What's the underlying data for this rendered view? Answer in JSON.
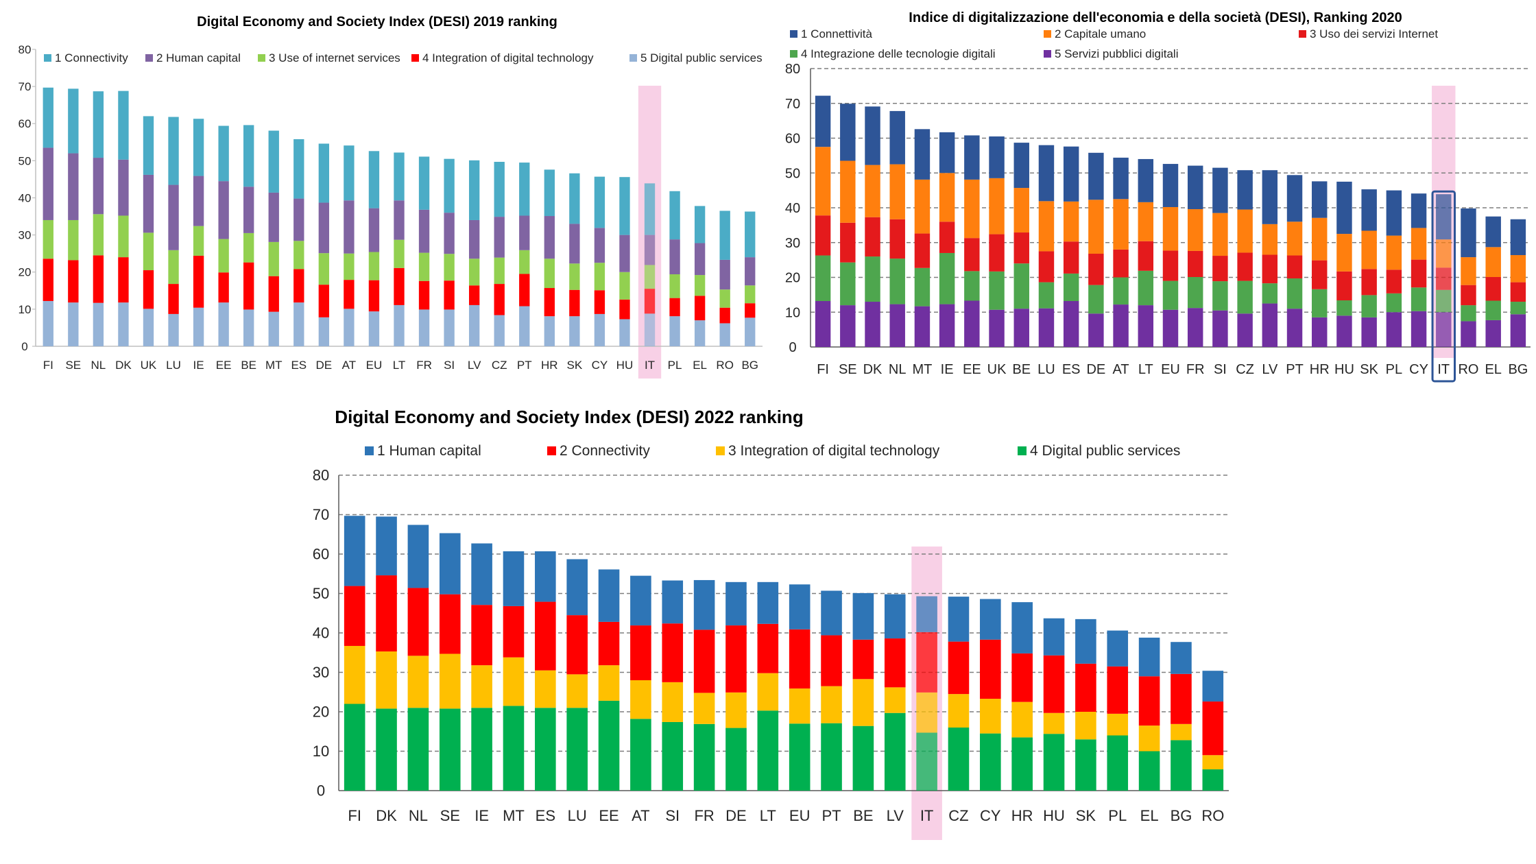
{
  "chart_data": [
    {
      "type": "bar",
      "stacked": true,
      "title": "Digital Economy and Society Index (DESI) 2019 ranking",
      "xlabel": "",
      "ylabel": "",
      "ylim": [
        0,
        80
      ],
      "yticks": [
        "0",
        "10",
        "20",
        "30",
        "40",
        "50",
        "60",
        "70",
        "80"
      ],
      "grid": false,
      "legend": "top",
      "highlight": "IT",
      "categories": [
        "FI",
        "SE",
        "NL",
        "DK",
        "UK",
        "LU",
        "IE",
        "EE",
        "BE",
        "MT",
        "ES",
        "DE",
        "AT",
        "EU",
        "LT",
        "FR",
        "SI",
        "LV",
        "CZ",
        "PT",
        "HR",
        "SK",
        "CY",
        "HU",
        "IT",
        "PL",
        "EL",
        "RO",
        "BG"
      ],
      "series": [
        {
          "name": "5 Digital public services",
          "color": "#95b3d7",
          "values": [
            12.2,
            11.8,
            11.7,
            11.8,
            10.1,
            8.7,
            10.4,
            11.8,
            9.9,
            9.3,
            11.8,
            7.8,
            10.1,
            9.4,
            11.1,
            9.9,
            9.9,
            11.1,
            8.4,
            10.8,
            8.1,
            8.1,
            8.7,
            7.3,
            8.8,
            8.1,
            7.0,
            6.2,
            7.7
          ]
        },
        {
          "name": "4 Integration of digital technology",
          "color": "#ff0000",
          "values": [
            11.4,
            11.4,
            12.8,
            12.2,
            10.4,
            8.1,
            14.0,
            8.1,
            12.7,
            9.6,
            9.0,
            8.8,
            7.8,
            8.4,
            10.0,
            7.7,
            7.8,
            5.3,
            8.4,
            8.7,
            7.6,
            7.1,
            6.4,
            5.3,
            6.7,
            4.9,
            6.6,
            4.2,
            3.9
          ]
        },
        {
          "name": "3 Use of internet services",
          "color": "#92d050",
          "values": [
            10.4,
            10.8,
            11.1,
            11.2,
            10.1,
            9.1,
            8.0,
            9.0,
            7.9,
            9.2,
            7.6,
            8.5,
            7.1,
            7.6,
            7.6,
            7.6,
            7.2,
            7.2,
            7.1,
            6.4,
            7.9,
            7.1,
            7.4,
            7.4,
            6.4,
            6.4,
            5.6,
            4.9,
            4.8
          ]
        },
        {
          "name": "2 Human capital",
          "color": "#8064a2",
          "values": [
            19.5,
            18.0,
            15.2,
            15.1,
            15.6,
            17.6,
            13.5,
            15.6,
            12.5,
            13.3,
            11.4,
            13.6,
            14.3,
            11.8,
            10.6,
            11.6,
            11.1,
            10.4,
            11.0,
            9.3,
            11.5,
            10.7,
            9.4,
            10.0,
            8.1,
            9.4,
            8.6,
            8.0,
            7.6
          ]
        },
        {
          "name": "1 Connectivity",
          "color": "#4bacc6",
          "values": [
            16.2,
            17.4,
            17.9,
            18.5,
            15.8,
            18.3,
            15.4,
            14.9,
            16.6,
            16.7,
            16.0,
            15.9,
            14.8,
            15.4,
            12.9,
            14.3,
            14.5,
            16.1,
            14.8,
            14.3,
            12.5,
            13.6,
            13.8,
            15.6,
            13.9,
            13.0,
            10.0,
            13.2,
            12.3
          ]
        }
      ]
    },
    {
      "type": "bar",
      "stacked": true,
      "title": "Indice di digitalizzazione dell'economia e della società (DESI), Ranking 2020",
      "xlabel": "",
      "ylabel": "",
      "ylim": [
        0,
        80
      ],
      "yticks": [
        "0",
        "10",
        "20",
        "30",
        "40",
        "50",
        "60",
        "70",
        "80"
      ],
      "grid": true,
      "legend": "top",
      "highlight": "IT",
      "categories": [
        "FI",
        "SE",
        "DK",
        "NL",
        "MT",
        "IE",
        "EE",
        "UK",
        "BE",
        "LU",
        "ES",
        "DE",
        "AT",
        "LT",
        "EU",
        "FR",
        "SI",
        "CZ",
        "LV",
        "PT",
        "HR",
        "HU",
        "SK",
        "PL",
        "CY",
        "IT",
        "RO",
        "EL",
        "BG"
      ],
      "series": [
        {
          "name": "5 Servizi pubblici digitali",
          "color": "#7030a0",
          "values": [
            13.2,
            12.0,
            13.0,
            12.3,
            11.7,
            12.3,
            13.3,
            10.7,
            11.0,
            11.1,
            13.2,
            9.6,
            12.2,
            12.0,
            10.7,
            11.2,
            10.5,
            9.6,
            12.5,
            11.0,
            8.5,
            9.0,
            8.5,
            10.0,
            10.3,
            10.0,
            7.4,
            7.7,
            9.4
          ]
        },
        {
          "name": "4 Integrazione delle tecnologie digitali",
          "color": "#4ea64e",
          "values": [
            13.1,
            12.3,
            13.0,
            13.1,
            11.0,
            14.7,
            8.5,
            11.0,
            13.0,
            7.5,
            7.9,
            8.2,
            7.8,
            9.9,
            8.3,
            8.9,
            8.4,
            9.4,
            5.8,
            8.7,
            8.1,
            4.4,
            6.4,
            5.4,
            6.8,
            6.4,
            4.6,
            5.6,
            3.6
          ]
        },
        {
          "name": "3 Uso dei servizi Internet",
          "color": "#e41a1c",
          "values": [
            11.5,
            11.4,
            11.3,
            11.3,
            9.9,
            9.0,
            9.5,
            10.7,
            8.9,
            8.9,
            9.2,
            9.0,
            8.0,
            8.5,
            8.7,
            7.5,
            7.3,
            8.1,
            8.2,
            6.6,
            8.3,
            8.3,
            7.5,
            6.8,
            8.0,
            6.4,
            5.8,
            6.8,
            5.6
          ]
        },
        {
          "name": "2 Capitale umano",
          "color": "#ff7f0e",
          "values": [
            19.7,
            17.8,
            15.0,
            15.8,
            15.5,
            14.0,
            16.8,
            16.1,
            12.8,
            14.4,
            11.5,
            15.5,
            14.5,
            11.2,
            12.5,
            12.0,
            12.3,
            12.4,
            8.8,
            9.7,
            12.2,
            10.8,
            11.0,
            9.8,
            9.1,
            8.1,
            8.0,
            8.6,
            7.8
          ]
        },
        {
          "name": "1 Connettività",
          "color": "#2e5597",
          "values": [
            14.7,
            16.4,
            16.8,
            15.3,
            14.5,
            11.7,
            12.7,
            12.0,
            13.0,
            16.1,
            15.8,
            13.5,
            11.9,
            12.4,
            12.4,
            12.5,
            13.0,
            11.3,
            15.5,
            13.4,
            10.5,
            15.0,
            11.9,
            13.0,
            9.9,
            13.0,
            14.0,
            8.8,
            10.3
          ]
        }
      ]
    },
    {
      "type": "bar",
      "stacked": true,
      "title": "Digital Economy and Society Index (DESI) 2022 ranking",
      "xlabel": "",
      "ylabel": "",
      "ylim": [
        0,
        80
      ],
      "yticks": [
        "0",
        "10",
        "20",
        "30",
        "40",
        "50",
        "60",
        "70",
        "80"
      ],
      "grid": true,
      "legend": "top",
      "highlight": "IT",
      "categories": [
        "FI",
        "DK",
        "NL",
        "SE",
        "IE",
        "MT",
        "ES",
        "LU",
        "EE",
        "AT",
        "SI",
        "FR",
        "DE",
        "LT",
        "EU",
        "PT",
        "BE",
        "LV",
        "IT",
        "CZ",
        "CY",
        "HR",
        "HU",
        "SK",
        "PL",
        "EL",
        "BG",
        "RO"
      ],
      "series": [
        {
          "name": "4 Digital public services",
          "color": "#00b050",
          "values": [
            22.0,
            20.8,
            21.0,
            20.8,
            21.0,
            21.5,
            21.0,
            21.0,
            22.8,
            18.2,
            17.4,
            16.9,
            15.9,
            20.3,
            17.0,
            17.1,
            16.4,
            19.7,
            14.7,
            16.0,
            14.5,
            13.5,
            14.4,
            13.0,
            14.0,
            10.0,
            12.8,
            5.4
          ]
        },
        {
          "name": "3 Integration of digital technology",
          "color": "#ffc000",
          "values": [
            14.7,
            14.5,
            13.2,
            13.9,
            10.8,
            12.3,
            9.5,
            8.5,
            9.0,
            9.8,
            10.1,
            7.9,
            9.0,
            9.5,
            8.9,
            9.4,
            11.9,
            6.5,
            10.2,
            8.5,
            8.8,
            9.0,
            5.3,
            7.0,
            5.5,
            6.5,
            4.1,
            3.6
          ]
        },
        {
          "name": "2 Connectivity",
          "color": "#ff0000",
          "values": [
            15.2,
            19.3,
            17.2,
            15.1,
            15.3,
            13.0,
            17.4,
            15.0,
            11.0,
            13.9,
            14.9,
            16.0,
            17.0,
            12.5,
            15.0,
            12.9,
            10.0,
            12.4,
            15.3,
            13.3,
            15.0,
            12.3,
            14.6,
            12.2,
            12.0,
            12.5,
            12.7,
            13.6
          ]
        },
        {
          "name": "1 Human capital",
          "color": "#2e75b6",
          "values": [
            17.8,
            14.9,
            16.0,
            15.5,
            15.6,
            13.9,
            12.8,
            14.2,
            13.3,
            12.6,
            10.9,
            12.6,
            11.0,
            10.6,
            11.4,
            11.3,
            11.8,
            11.2,
            9.1,
            11.4,
            10.3,
            13.0,
            9.4,
            11.3,
            9.1,
            9.8,
            8.1,
            7.8
          ]
        }
      ]
    }
  ]
}
